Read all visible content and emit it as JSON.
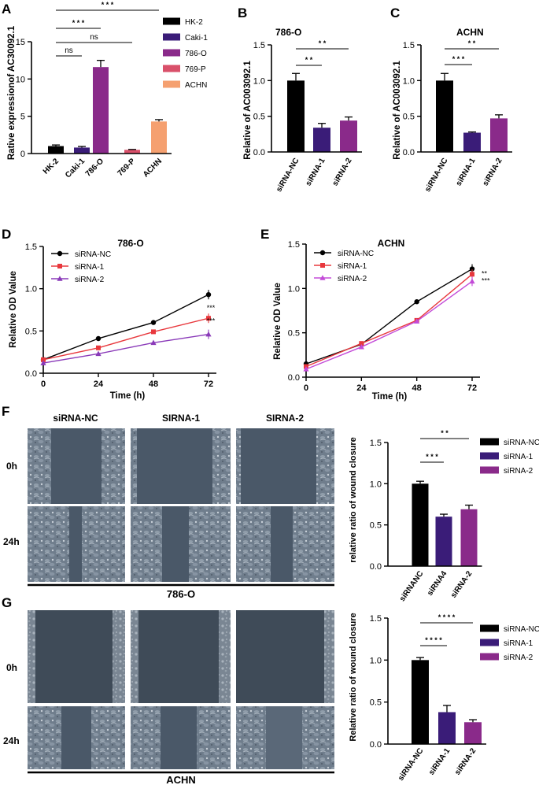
{
  "panel_labels": [
    "A",
    "B",
    "C",
    "D",
    "E",
    "F",
    "G"
  ],
  "chart_data": [
    {
      "id": "A",
      "type": "bar",
      "categories": [
        "HK-2",
        "Caki-1",
        "786-O",
        "769-P",
        "ACHN"
      ],
      "values": [
        1.0,
        0.8,
        11.6,
        0.5,
        4.3
      ],
      "errors": [
        0.15,
        0.15,
        0.9,
        0.05,
        0.25
      ],
      "colors": [
        "#000000",
        "#3a1c78",
        "#8a2a8a",
        "#d9506a",
        "#f5a070"
      ],
      "title": "",
      "xlabel": "",
      "ylabel": "Rative expressionof  AC30092.1",
      "ylim": [
        0,
        15
      ],
      "yticks": [
        "0",
        "5",
        "10",
        "15"
      ],
      "legend": [
        "HK-2",
        "Caki-1",
        "786-O",
        "769-P",
        "ACHN"
      ],
      "brackets": [
        {
          "from": 0,
          "to": 1,
          "label": "ns"
        },
        {
          "from": 0,
          "to": 2,
          "label": "* * *"
        },
        {
          "from": 0,
          "to": 3,
          "label": "ns"
        },
        {
          "from": 0,
          "to": 4,
          "label": "* * *"
        }
      ]
    },
    {
      "id": "B",
      "type": "bar",
      "title": "786-O",
      "categories": [
        "siRNA-NC",
        "siRNA-1",
        "siRNA-2"
      ],
      "values": [
        1.0,
        0.34,
        0.44
      ],
      "errors": [
        0.1,
        0.06,
        0.05
      ],
      "colors": [
        "#000000",
        "#3a1c78",
        "#8a2a8a"
      ],
      "ylabel": "Relative of AC003092.1",
      "ylim": [
        0,
        1.5
      ],
      "yticks": [
        "0.0",
        "0.5",
        "1.0",
        "1.5"
      ],
      "brackets": [
        {
          "from": 0,
          "to": 1,
          "label": "* *"
        },
        {
          "from": 0,
          "to": 2,
          "label": "* *"
        }
      ]
    },
    {
      "id": "C",
      "type": "bar",
      "title": "ACHN",
      "categories": [
        "siRNA-NC",
        "siRNA-1",
        "siRNA-2"
      ],
      "values": [
        1.0,
        0.27,
        0.47
      ],
      "errors": [
        0.1,
        0.01,
        0.05
      ],
      "colors": [
        "#000000",
        "#3a1c78",
        "#8a2a8a"
      ],
      "ylabel": "Relative of AC003092.1",
      "ylim": [
        0,
        1.5
      ],
      "yticks": [
        "0.0",
        "0.5",
        "1.0",
        "1.5"
      ],
      "brackets": [
        {
          "from": 0,
          "to": 1,
          "label": "* * *"
        },
        {
          "from": 0,
          "to": 2,
          "label": "* *"
        }
      ]
    },
    {
      "id": "D",
      "type": "line",
      "title": "786-O",
      "x": [
        0,
        24,
        48,
        72
      ],
      "xticks": [
        "0",
        "24",
        "48",
        "72"
      ],
      "xlabel": "Time (h)",
      "ylabel": "Relative OD  Value",
      "ylim": [
        0,
        1.5
      ],
      "yticks": [
        "0.0",
        "0.5",
        "1.0",
        "1.5"
      ],
      "series": [
        {
          "name": "siRNA-NC",
          "values": [
            0.16,
            0.41,
            0.6,
            0.93
          ],
          "color": "#000000",
          "marker": "circle"
        },
        {
          "name": "siRNA-1",
          "values": [
            0.16,
            0.3,
            0.49,
            0.65
          ],
          "color": "#e8383d",
          "marker": "square"
        },
        {
          "name": "siRNA-2",
          "values": [
            0.12,
            0.23,
            0.36,
            0.46
          ],
          "color": "#8a3ab9",
          "marker": "triangle"
        }
      ],
      "annotations": [
        "***",
        "***"
      ]
    },
    {
      "id": "E",
      "type": "line",
      "title": "ACHN",
      "x": [
        0,
        24,
        48,
        72
      ],
      "xticks": [
        "0",
        "24",
        "48",
        "72"
      ],
      "xlabel": "Time (h)",
      "ylabel": "Relative OD  Value",
      "ylim": [
        0,
        1.5
      ],
      "yticks": [
        "0.0",
        "0.5",
        "1.0",
        "1.5"
      ],
      "series": [
        {
          "name": "siRNA-NC",
          "values": [
            0.15,
            0.37,
            0.85,
            1.22
          ],
          "color": "#000000",
          "marker": "circle"
        },
        {
          "name": "siRNA-1",
          "values": [
            0.12,
            0.38,
            0.64,
            1.16
          ],
          "color": "#e8383d",
          "marker": "square"
        },
        {
          "name": "siRNA-2",
          "values": [
            0.09,
            0.34,
            0.63,
            1.08
          ],
          "color": "#c34bd8",
          "marker": "triangle"
        }
      ],
      "annotations": [
        "**",
        "***"
      ]
    },
    {
      "id": "F",
      "type": "bar",
      "title": "",
      "categories": [
        "siRNANC",
        "siRNA4",
        "siRNA-2"
      ],
      "values": [
        1.0,
        0.6,
        0.69
      ],
      "errors": [
        0.03,
        0.03,
        0.05
      ],
      "colors": [
        "#000000",
        "#3a1c78",
        "#8a2a8a"
      ],
      "ylabel": "relative ratio of wound closure",
      "ylim": [
        0,
        1.5
      ],
      "yticks": [
        "0.0",
        "0.5",
        "1.0",
        "1.5"
      ],
      "legend": [
        "siRNA-NC",
        "siRNA-1",
        "siRNA-2"
      ],
      "brackets": [
        {
          "from": 0,
          "to": 1,
          "label": "* * *"
        },
        {
          "from": 0,
          "to": 2,
          "label": "* *"
        }
      ]
    },
    {
      "id": "G",
      "type": "bar",
      "title": "",
      "categories": [
        "siRNA-NC",
        "siRNA-1",
        "siRNA-2"
      ],
      "values": [
        1.0,
        0.38,
        0.26
      ],
      "errors": [
        0.03,
        0.08,
        0.03
      ],
      "colors": [
        "#000000",
        "#3a1c78",
        "#8a2a8a"
      ],
      "ylabel": "Relative ratio of wound closure",
      "ylim": [
        0,
        1.5
      ],
      "yticks": [
        "0.0",
        "0.5",
        "1.0",
        "1.5"
      ],
      "legend": [
        "siRNA-NC",
        "siRNA-1",
        "siRNA-2"
      ],
      "brackets": [
        {
          "from": 0,
          "to": 1,
          "label": "* * * *"
        },
        {
          "from": 0,
          "to": 2,
          "label": "* * * *"
        }
      ]
    }
  ],
  "micrographs": {
    "F": {
      "columns": [
        "siRNA-NC",
        "SIRNA-1",
        "SIRNA-2"
      ],
      "rows": [
        "0h",
        "24h"
      ],
      "caption": "786-O"
    },
    "G": {
      "columns": [],
      "rows": [
        "0h",
        "24h"
      ],
      "caption": "ACHN"
    }
  }
}
